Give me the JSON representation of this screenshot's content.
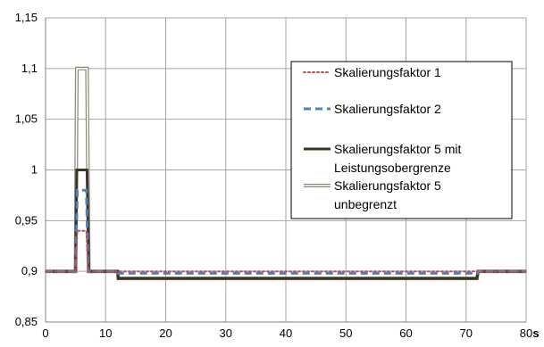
{
  "chart_data": {
    "type": "line",
    "title": "",
    "xlabel": "",
    "x_unit": "s",
    "ylabel": "",
    "xlim": [
      0,
      80
    ],
    "ylim": [
      0.85,
      1.15
    ],
    "x_ticks": [
      "0",
      "10",
      "20",
      "30",
      "40",
      "50",
      "60",
      "70",
      "80"
    ],
    "y_ticks": [
      "0,85",
      "0,9",
      "0,95",
      "1",
      "1,05",
      "1,1",
      "1,15"
    ],
    "grid": true,
    "legend_position": "right",
    "series": [
      {
        "name": "Skalierungsfaktor 1",
        "color": "#c0504d",
        "style": "dotted",
        "x": [
          0,
          5,
          5.3,
          6.8,
          7.1,
          12,
          12,
          72,
          72,
          80
        ],
        "y": [
          0.9,
          0.9,
          0.94,
          0.94,
          0.9,
          0.9,
          0.9,
          0.9,
          0.9,
          0.9
        ]
      },
      {
        "name": "Skalierungsfaktor 2",
        "color": "#4f81bd",
        "style": "dashed",
        "x": [
          0,
          5,
          5.3,
          6.8,
          7.1,
          12,
          12,
          72,
          72,
          80
        ],
        "y": [
          0.9,
          0.9,
          0.98,
          0.98,
          0.9,
          0.9,
          0.898,
          0.898,
          0.9,
          0.9
        ]
      },
      {
        "name": "Skalierungsfaktor 5 mit Leistungsobergrenze",
        "color": "#3d3524",
        "style": "solid-thick",
        "x": [
          0,
          5,
          5.2,
          6.9,
          7.2,
          12,
          12.1,
          71.8,
          72,
          80
        ],
        "y": [
          0.9,
          0.9,
          1.0,
          1.0,
          0.9,
          0.9,
          0.893,
          0.893,
          0.9,
          0.9
        ]
      },
      {
        "name": "Skalierungsfaktor 5 unbegrenzt",
        "color": "#8a8670",
        "style": "double",
        "x": [
          0,
          5,
          5.2,
          6.9,
          7.2,
          12,
          12.1,
          71.8,
          72,
          80
        ],
        "y": [
          0.9,
          0.9,
          1.1,
          1.1,
          0.9,
          0.9,
          0.893,
          0.893,
          0.9,
          0.9
        ]
      }
    ],
    "legend_labels": [
      [
        "Skalierungsfaktor 1"
      ],
      [
        "Skalierungsfaktor 2"
      ],
      [
        "Skalierungsfaktor 5 mit",
        "Leistungsobergrenze"
      ],
      [
        "Skalierungsfaktor 5",
        "unbegrenzt"
      ]
    ]
  }
}
